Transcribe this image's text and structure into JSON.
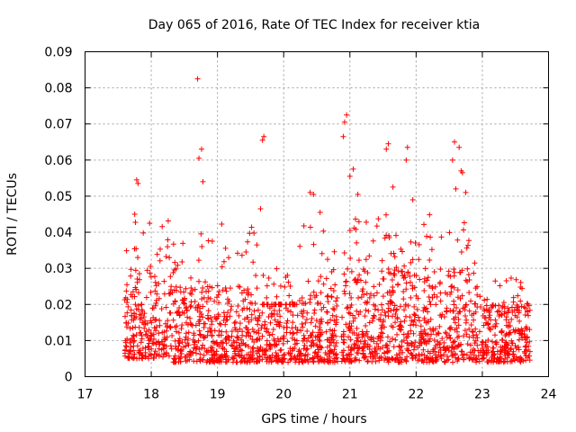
{
  "chart_data": {
    "type": "scatter",
    "title": "Day 065 of 2016, Rate Of TEC Index for receiver ktia",
    "xlabel": "GPS time / hours",
    "ylabel": "ROTI / TECUs",
    "xlim": [
      17,
      24
    ],
    "ylim": [
      0,
      0.09
    ],
    "xticks": [
      "17",
      "18",
      "19",
      "20",
      "21",
      "22",
      "23",
      "24"
    ],
    "yticks": [
      "0",
      "0.01",
      "0.02",
      "0.03",
      "0.04",
      "0.05",
      "0.06",
      "0.07",
      "0.08",
      "0.09"
    ],
    "grid": true,
    "marker": "+",
    "color": "#ff0000",
    "data_range": {
      "x_start": 17.6,
      "x_end": 23.72
    },
    "gaps": [
      [
        20.82,
        20.87
      ]
    ],
    "series": [
      {
        "name": "ROTI",
        "highlights": [
          [
            18.7,
            0.0825
          ],
          [
            20.95,
            0.0725
          ],
          [
            20.92,
            0.0705
          ],
          [
            20.9,
            0.0665
          ],
          [
            19.7,
            0.0665
          ],
          [
            19.68,
            0.0655
          ],
          [
            18.76,
            0.063
          ],
          [
            18.72,
            0.0605
          ],
          [
            21.58,
            0.0645
          ],
          [
            21.55,
            0.063
          ],
          [
            22.58,
            0.065
          ],
          [
            22.65,
            0.0635
          ],
          [
            21.87,
            0.0635
          ],
          [
            21.85,
            0.06
          ],
          [
            22.55,
            0.06
          ],
          [
            22.68,
            0.057
          ],
          [
            22.7,
            0.0565
          ],
          [
            21.05,
            0.0575
          ],
          [
            21.0,
            0.0555
          ],
          [
            17.78,
            0.0545
          ],
          [
            17.8,
            0.0535
          ],
          [
            18.78,
            0.054
          ],
          [
            20.4,
            0.051
          ],
          [
            20.45,
            0.0505
          ],
          [
            21.12,
            0.0505
          ],
          [
            21.65,
            0.0525
          ],
          [
            22.75,
            0.051
          ],
          [
            22.6,
            0.052
          ],
          [
            19.65,
            0.0465
          ],
          [
            17.75,
            0.045
          ],
          [
            20.55,
            0.0455
          ],
          [
            21.95,
            0.049
          ]
        ],
        "clusters": [
          {
            "x": [
              17.6,
              18.3
            ],
            "base": [
              0.005,
              0.02
            ],
            "peaks": [
              0.03,
              0.045
            ]
          },
          {
            "x": [
              18.3,
              18.8
            ],
            "base": [
              0.004,
              0.02
            ],
            "peaks": [
              0.025,
              0.04
            ]
          },
          {
            "x": [
              18.8,
              19.6
            ],
            "base": [
              0.004,
              0.017
            ],
            "peaks": [
              0.025,
              0.043
            ]
          },
          {
            "x": [
              19.6,
              20.2
            ],
            "base": [
              0.004,
              0.02
            ],
            "peaks": [
              0.02,
              0.03
            ]
          },
          {
            "x": [
              20.2,
              20.82
            ],
            "base": [
              0.004,
              0.017
            ],
            "peaks": [
              0.025,
              0.044
            ]
          },
          {
            "x": [
              20.87,
              21.5
            ],
            "base": [
              0.004,
              0.02
            ],
            "peaks": [
              0.03,
              0.045
            ]
          },
          {
            "x": [
              21.5,
              22.9
            ],
            "base": [
              0.004,
              0.022
            ],
            "peaks": [
              0.03,
              0.045
            ]
          },
          {
            "x": [
              22.9,
              23.72
            ],
            "base": [
              0.004,
              0.017
            ],
            "peaks": [
              0.02,
              0.028
            ]
          }
        ]
      }
    ]
  }
}
